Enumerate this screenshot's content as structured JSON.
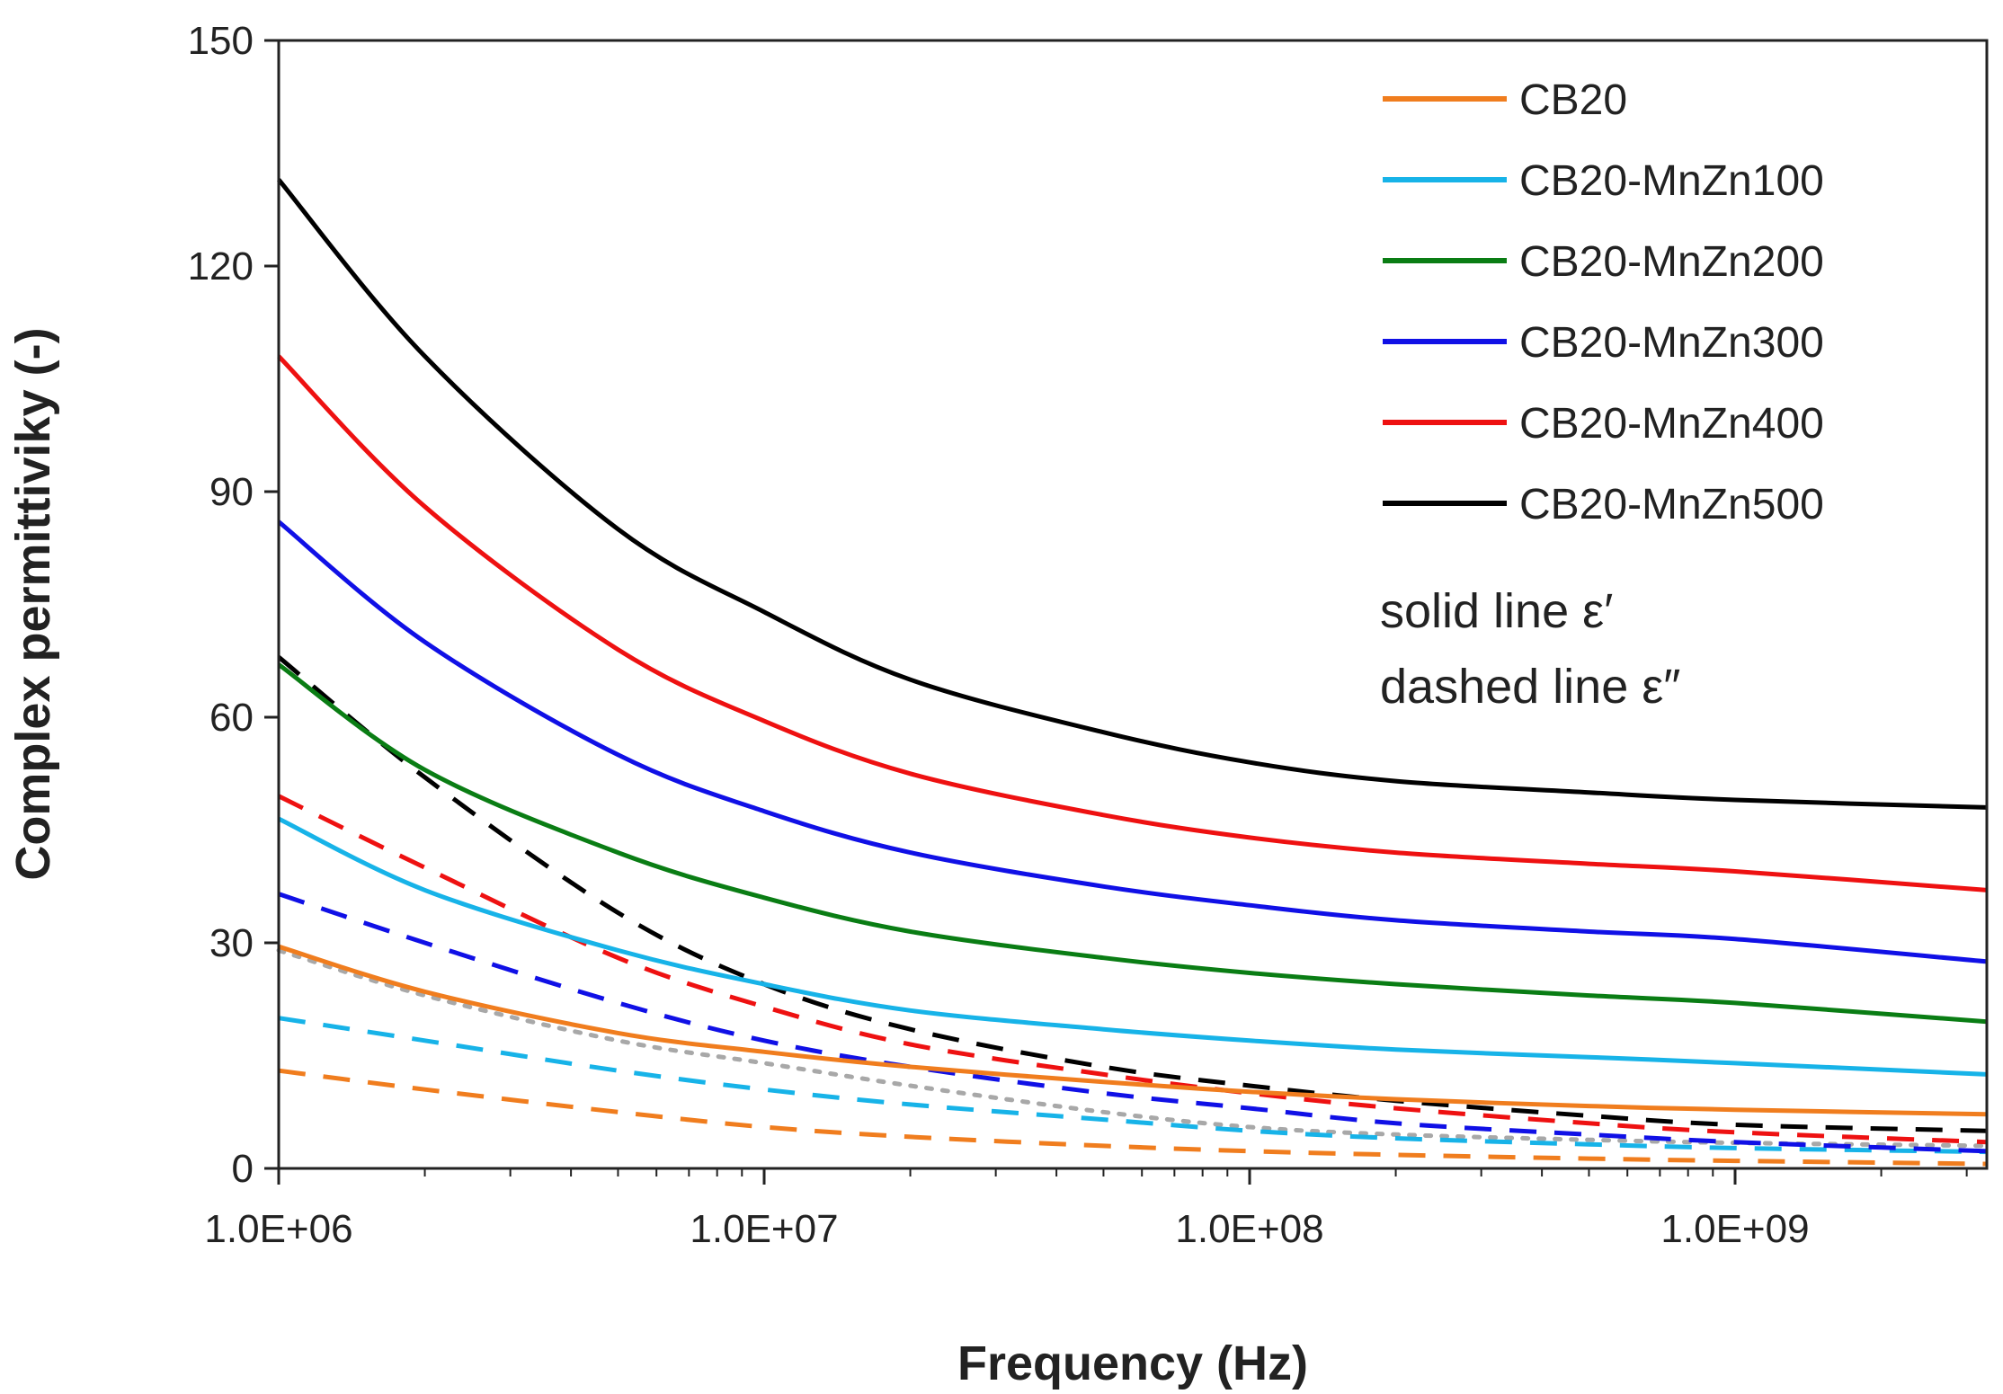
{
  "chart_data": {
    "type": "line",
    "title": "",
    "xlabel": "Frequency (Hz)",
    "ylabel": "Complex permittiviky (-)",
    "xscale": "log",
    "xlim": [
      1000000,
      3300000000
    ],
    "ylim": [
      0,
      150
    ],
    "grid": false,
    "legend_position": "top-right",
    "x_ticks": [
      {
        "value": 1000000,
        "label": "1.0E+06"
      },
      {
        "value": 10000000,
        "label": "1.0E+07"
      },
      {
        "value": 100000000,
        "label": "1.0E+08"
      },
      {
        "value": 1000000000,
        "label": "1.0E+09"
      }
    ],
    "y_ticks": [
      {
        "value": 0,
        "label": "0"
      },
      {
        "value": 30,
        "label": "30"
      },
      {
        "value": 60,
        "label": "60"
      },
      {
        "value": 90,
        "label": "90"
      },
      {
        "value": 120,
        "label": "120"
      },
      {
        "value": 150,
        "label": "150"
      }
    ],
    "annotations": [
      "solid line ε′",
      "dashed line ε″"
    ],
    "x": [
      1000000,
      2000000,
      5000000,
      10000000,
      20000000,
      50000000,
      100000000,
      200000000,
      500000000,
      1000000000,
      3300000000
    ],
    "series": [
      {
        "name": "CB20",
        "component": "real",
        "style": "solid",
        "color": "#f07d1e",
        "in_legend": true,
        "values": [
          29.5,
          23.5,
          18,
          15.5,
          13.5,
          11.5,
          10.2,
          9.2,
          8.3,
          7.8,
          7.2
        ]
      },
      {
        "name": "CB20-MnZn100",
        "component": "real",
        "style": "solid",
        "color": "#17b3e8",
        "in_legend": true,
        "values": [
          46.5,
          37,
          29,
          24.5,
          21,
          18.5,
          17,
          15.8,
          14.8,
          14,
          12.5
        ]
      },
      {
        "name": "CB20-MnZn200",
        "component": "real",
        "style": "solid",
        "color": "#0a7d14",
        "in_legend": true,
        "values": [
          67,
          53,
          42,
          36,
          31.5,
          28,
          26,
          24.5,
          23,
          22,
          19.5
        ]
      },
      {
        "name": "CB20-MnZn300",
        "component": "real",
        "style": "solid",
        "color": "#1010e6",
        "in_legend": true,
        "values": [
          86,
          70,
          55,
          47.5,
          42,
          37.5,
          35,
          33,
          31.5,
          30.5,
          27.5
        ]
      },
      {
        "name": "CB20-MnZn400",
        "component": "real",
        "style": "solid",
        "color": "#ee1111",
        "in_legend": true,
        "values": [
          108,
          88,
          69,
          59.5,
          52.5,
          47,
          44,
          42,
          40.5,
          39.5,
          37
        ]
      },
      {
        "name": "CB20-MnZn500",
        "component": "real",
        "style": "solid",
        "color": "#000000",
        "in_legend": true,
        "values": [
          131.5,
          108,
          85,
          74,
          65,
          58,
          54,
          51.5,
          50,
          49,
          48
        ]
      },
      {
        "name": "CB20",
        "component": "imaginary",
        "style": "dashed",
        "color": "#f07d1e",
        "in_legend": false,
        "values": [
          13,
          10.5,
          7.5,
          5.5,
          4.2,
          3,
          2.3,
          1.8,
          1.3,
          1,
          0.6
        ]
      },
      {
        "name": "CB20-MnZn100",
        "component": "imaginary",
        "style": "dashed",
        "color": "#17b3e8",
        "in_legend": false,
        "values": [
          20,
          17,
          13,
          10.5,
          8.5,
          6.5,
          5,
          4,
          3.2,
          2.7,
          2.2
        ]
      },
      {
        "name": "CB20-MnZn300",
        "component": "imaginary",
        "style": "dashed",
        "color": "#1010e6",
        "in_legend": false,
        "values": [
          36.5,
          30,
          22,
          17,
          13.5,
          10,
          8,
          6,
          4.5,
          3.5,
          2.3
        ]
      },
      {
        "name": "CB20-MnZn400",
        "component": "imaginary",
        "style": "dashed",
        "color": "#ee1111",
        "in_legend": false,
        "values": [
          49.5,
          40,
          28,
          21.5,
          16.5,
          12.5,
          10,
          8,
          6,
          4.8,
          3.5
        ]
      },
      {
        "name": "CB20-MnZn500",
        "component": "imaginary",
        "style": "dashed",
        "color": "#000000",
        "in_legend": false,
        "values": [
          68,
          52,
          34,
          24.5,
          18.5,
          13.5,
          11,
          9,
          7,
          5.8,
          5
        ]
      },
      {
        "name": "CB20-MnZn200",
        "component": "imaginary",
        "style": "dotted",
        "color": "#a8a8a8",
        "in_legend": false,
        "values": [
          29,
          23,
          17,
          14,
          11,
          7.5,
          5.5,
          4.5,
          3.8,
          3.4,
          3
        ]
      }
    ]
  }
}
